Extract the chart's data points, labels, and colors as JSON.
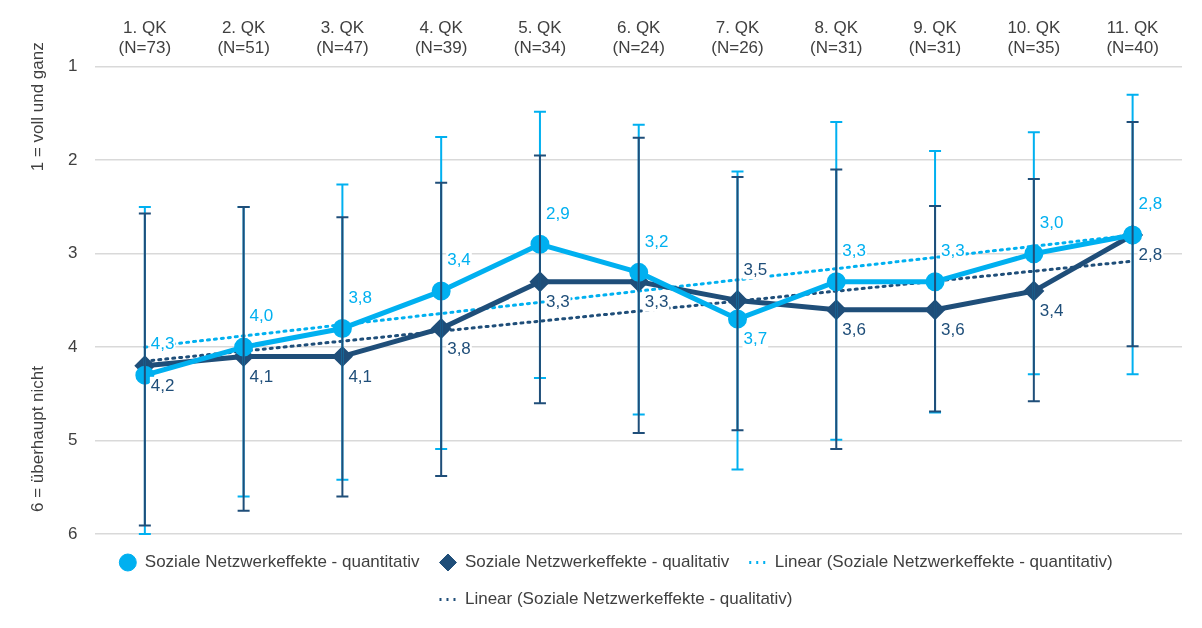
{
  "chart_data": {
    "type": "line",
    "categories": [
      "1. QK\n(N=73)",
      "2. QK\n(N=51)",
      "3. QK\n(N=47)",
      "4. QK\n(N=39)",
      "5. QK\n(N=34)",
      "6. QK\n(N=24)",
      "7. QK\n(N=26)",
      "8. QK\n(N=31)",
      "9. QK\n(N=31)",
      "10. QK\n(N=35)",
      "11. QK\n(N=40)"
    ],
    "ylabel": "1 = voll und ganz",
    "annotations": [
      "6 = überhaupt nicht"
    ],
    "ylim": [
      6,
      1
    ],
    "yticks": [
      1,
      2,
      3,
      4,
      5,
      6
    ],
    "grid": "y",
    "legend": "bottom",
    "series": [
      {
        "name": "Soziale Netzwerkeffekte - quantitativ",
        "color": "#00b0f0",
        "marker": "circle",
        "line_style": "solid",
        "values": [
          4.3,
          4.0,
          3.8,
          3.4,
          2.9,
          3.2,
          3.7,
          3.3,
          3.3,
          3.0,
          2.8
        ],
        "value_labels": [
          "4,3",
          "4,0",
          "3,8",
          "3,4",
          "2,9",
          "3,2",
          "3,7",
          "3,3",
          "3,3",
          "3,0",
          "2,8"
        ],
        "errors": [
          [
            2.5,
            6.0
          ],
          [
            2.5,
            5.6
          ],
          [
            2.26,
            5.42
          ],
          [
            1.75,
            5.09
          ],
          [
            1.48,
            4.33
          ],
          [
            1.62,
            4.72
          ],
          [
            2.12,
            5.31
          ],
          [
            1.59,
            4.99
          ],
          [
            1.9,
            4.7
          ],
          [
            1.7,
            4.29
          ],
          [
            1.3,
            4.29
          ]
        ]
      },
      {
        "name": "Soziale Netzwerkeffekte - qualitativ",
        "color": "#1f4e79",
        "marker": "diamond",
        "line_style": "solid",
        "values": [
          4.2,
          4.1,
          4.1,
          3.8,
          3.3,
          3.3,
          3.5,
          3.6,
          3.6,
          3.4,
          2.8
        ],
        "value_labels": [
          "4,2",
          "4,1",
          "4,1",
          "3,8",
          "3,3",
          "3,3",
          "3,5",
          "3,6",
          "3,6",
          "3,4",
          "2,8"
        ],
        "errors": [
          [
            2.57,
            5.91
          ],
          [
            2.5,
            5.75
          ],
          [
            2.61,
            5.6
          ],
          [
            2.24,
            5.38
          ],
          [
            1.95,
            4.6
          ],
          [
            1.76,
            4.92
          ],
          [
            2.18,
            4.89
          ],
          [
            2.1,
            5.09
          ],
          [
            2.49,
            4.69
          ],
          [
            2.2,
            4.58
          ],
          [
            1.59,
            3.99
          ]
        ]
      },
      {
        "name": "Linear (Soziale Netzwerkeffekte - quantitativ)",
        "color": "#00b0f0",
        "line_style": "dotted",
        "values": [
          4.0,
          null,
          null,
          null,
          null,
          null,
          null,
          null,
          null,
          null,
          2.8
        ]
      },
      {
        "name": "Linear (Soziale Netzwerkeffekte - qualitativ)",
        "color": "#1f4e79",
        "line_style": "dotted",
        "values": [
          4.15,
          null,
          null,
          null,
          null,
          null,
          null,
          null,
          null,
          null,
          3.08
        ]
      }
    ]
  }
}
